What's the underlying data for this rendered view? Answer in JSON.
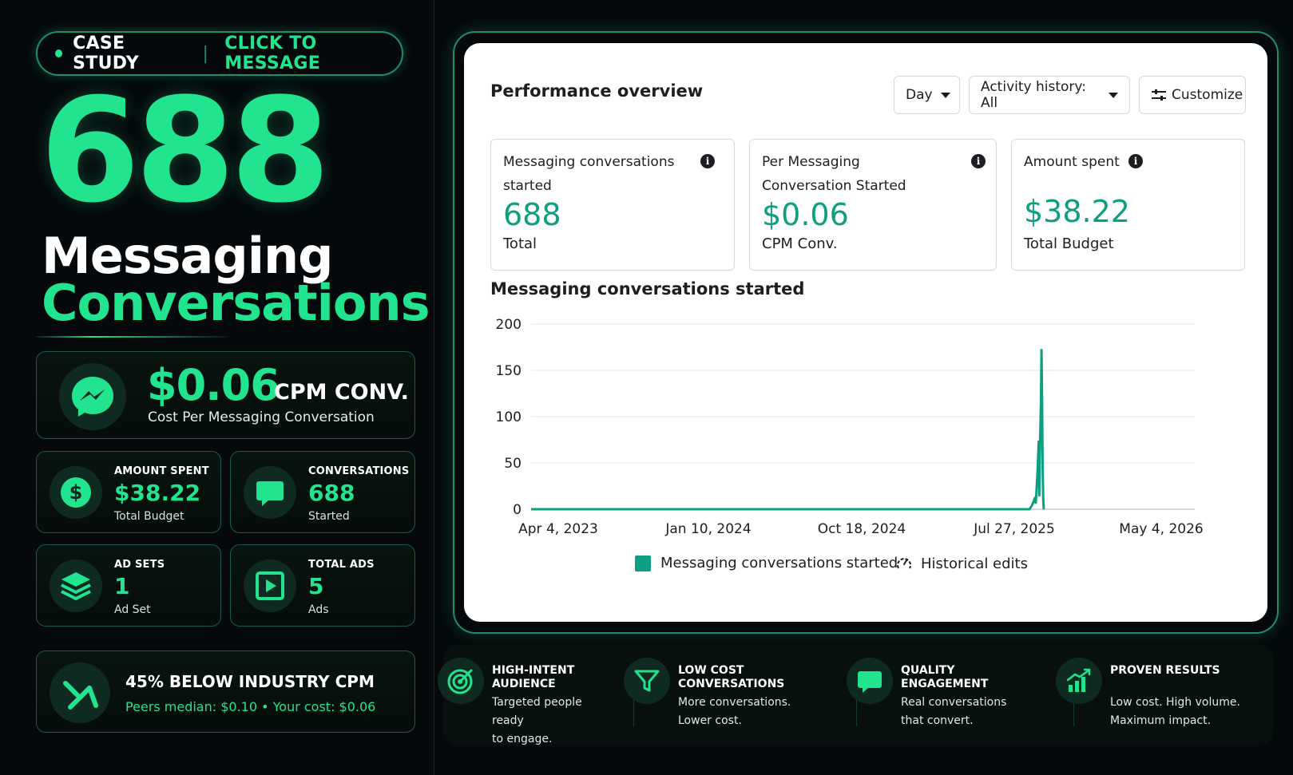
{
  "header": {
    "badge_left": "CASE STUDY",
    "badge_sep": "|",
    "badge_right": "CLICK TO MESSAGE"
  },
  "hero": {
    "number": "688",
    "title_line1": "Messaging",
    "title_line2": "Conversations"
  },
  "cpm_card": {
    "value": "$0.06",
    "suffix": "CPM CONV.",
    "subtitle": "Cost Per Messaging Conversation",
    "icon": "messenger-icon"
  },
  "stats": [
    {
      "label": "AMOUNT SPENT",
      "value": "$38.22",
      "sub": "Total Budget",
      "icon": "dollar-icon"
    },
    {
      "label": "CONVERSATIONS",
      "value": "688",
      "sub": "Started",
      "icon": "chat-bubble-icon"
    },
    {
      "label": "AD SETS",
      "value": "1",
      "sub": "Ad Set",
      "icon": "layers-icon"
    },
    {
      "label": "TOTAL ADS",
      "value": "5",
      "sub": "Ads",
      "icon": "play-icon"
    }
  ],
  "industry": {
    "title": "45% BELOW INDUSTRY CPM",
    "subtitle": "Peers median: $0.10  •  Your cost: $0.06",
    "icon": "trend-down-icon"
  },
  "panel": {
    "title": "Performance overview",
    "controls": {
      "day": "Day",
      "activity": "Activity history: All",
      "customize": "Customize"
    },
    "metrics": [
      {
        "label": "Messaging conversations started",
        "value": "688",
        "sub": "Total"
      },
      {
        "label": "Per Messaging Conversation Started",
        "value": "$0.06",
        "sub": "CPM Conv."
      },
      {
        "label": "Amount spent",
        "value": "$38.22",
        "sub": "Total Budget"
      }
    ],
    "chart_title": "Messaging conversations started",
    "legend": {
      "series": "Messaging conversations started",
      "edits": "Historical edits"
    }
  },
  "features": [
    {
      "title": "HIGH-INTENT\nAUDIENCE",
      "desc": "Targeted people ready\nto engage.",
      "icon": "target-icon"
    },
    {
      "title": "LOW COST CONVERSATIONS",
      "desc": "More conversations.\nLower cost.",
      "icon": "funnel-icon"
    },
    {
      "title": "QUALITY ENGAGEMENT",
      "desc": "Real conversations\nthat convert.",
      "icon": "chat-bubble-icon"
    },
    {
      "title": "PROVEN RESULTS",
      "desc": "Low cost. High volume.\nMaximum impact.",
      "icon": "bar-chart-up-icon"
    }
  ],
  "colors": {
    "accent": "#22e38e",
    "chart_line": "#0e9e82",
    "background": "#05090c"
  },
  "chart_data": {
    "type": "line",
    "title": "Messaging conversations started",
    "xlabel": "",
    "ylabel": "",
    "ylim": [
      0,
      200
    ],
    "yticks": [
      0,
      50,
      100,
      150,
      200
    ],
    "xticks": [
      "Apr 4, 2023",
      "Jan 10, 2024",
      "Oct 18, 2024",
      "Jul 27, 2025",
      "May 4, 2026"
    ],
    "xlim": [
      "2023-03-10",
      "2026-05-18"
    ],
    "grid": true,
    "legend_position": "bottom-center",
    "series": [
      {
        "name": "Messaging conversations started",
        "color": "#0e9e82",
        "points": [
          [
            "2023-03-10",
            0
          ],
          [
            "2025-08-01",
            0
          ],
          [
            "2025-08-04",
            3
          ],
          [
            "2025-08-06",
            5
          ],
          [
            "2025-08-08",
            8
          ],
          [
            "2025-08-10",
            12
          ],
          [
            "2025-08-12",
            7
          ],
          [
            "2025-08-13",
            18
          ],
          [
            "2025-08-15",
            40
          ],
          [
            "2025-08-17",
            73
          ],
          [
            "2025-08-18",
            15
          ],
          [
            "2025-08-19",
            60
          ],
          [
            "2025-08-21",
            115
          ],
          [
            "2025-08-22",
            172
          ],
          [
            "2025-08-23",
            120
          ],
          [
            "2025-08-24",
            45
          ],
          [
            "2025-08-25",
            10
          ],
          [
            "2025-08-26",
            0
          ]
        ]
      }
    ]
  }
}
